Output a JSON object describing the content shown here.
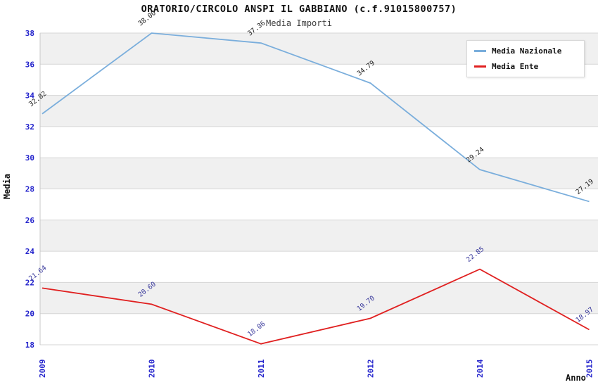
{
  "header": {
    "title": "ORATORIO/CIRCOLO ANSPI IL GABBIANO (c.f.91015800757)",
    "subtitle": "Media Importi"
  },
  "legend": {
    "items": [
      {
        "label": "Media Nazionale",
        "color": "#7aaedc"
      },
      {
        "label": "Media Ente",
        "color": "#e02020"
      }
    ]
  },
  "chart_data": {
    "type": "line",
    "title": "ORATORIO/CIRCOLO ANSPI IL GABBIANO (c.f.91015800757)",
    "subtitle": "Media Importi",
    "xlabel": "Anno",
    "ylabel": "Media",
    "categories": [
      "2009",
      "2010",
      "2011",
      "2012",
      "2014",
      "2015"
    ],
    "series": [
      {
        "name": "Media Nazionale",
        "color": "#7aaedc",
        "label_color": "#1a1a1a",
        "values": [
          32.82,
          38.0,
          37.36,
          34.79,
          29.24,
          27.19
        ]
      },
      {
        "name": "Media Ente",
        "color": "#e02020",
        "label_color": "#333399",
        "values": [
          21.64,
          20.6,
          18.06,
          19.7,
          22.85,
          18.97
        ]
      }
    ],
    "ylim": [
      18,
      38
    ],
    "ytick_step": 2,
    "grid": true,
    "plot_bands_alternating": true,
    "legend_position": "top-right",
    "colors": {
      "tick_label": "#2424cc",
      "band": "#f0f0f0",
      "gridline": "#d6d6d6",
      "plot_border": "#c8c8c8"
    }
  }
}
